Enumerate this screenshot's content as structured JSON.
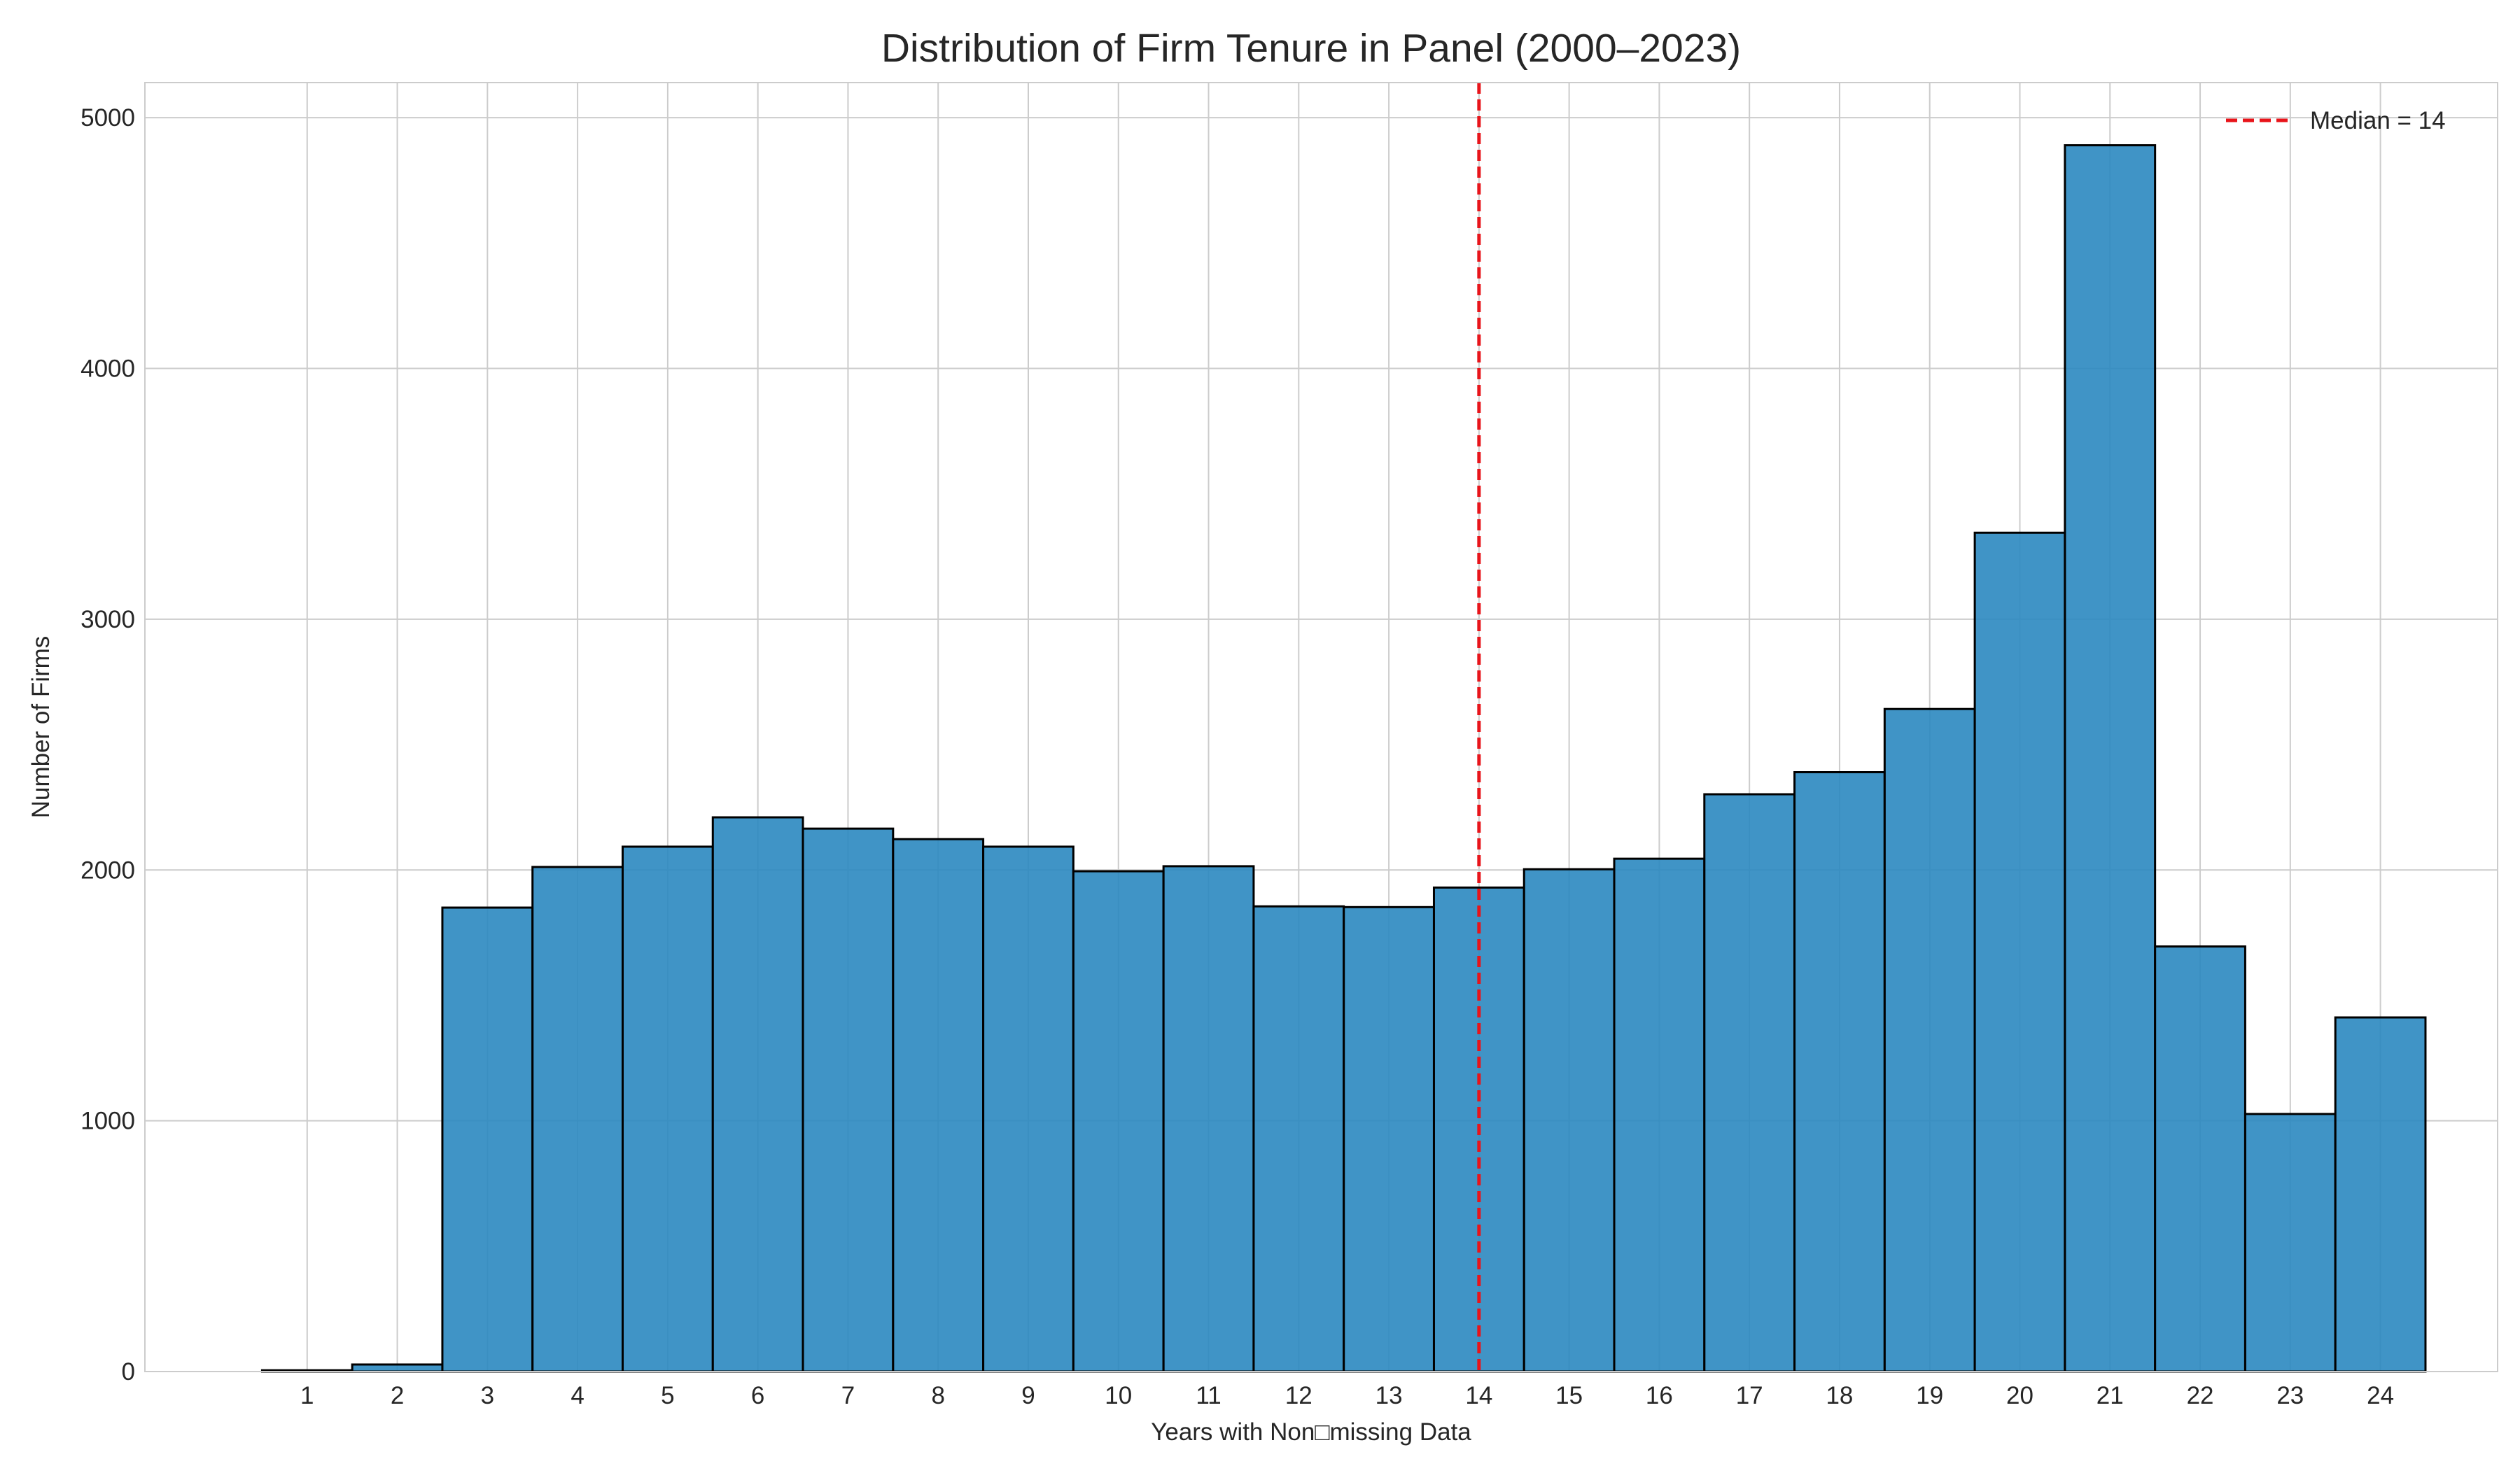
{
  "chart_data": {
    "type": "bar",
    "title": "Distribution of Firm Tenure in Panel (2000–2023)",
    "xlabel": "Years with Non□missing Data",
    "ylabel": "Number of Firms",
    "categories": [
      "1",
      "2",
      "3",
      "4",
      "5",
      "6",
      "7",
      "8",
      "9",
      "10",
      "11",
      "12",
      "13",
      "14",
      "15",
      "16",
      "17",
      "18",
      "19",
      "20",
      "21",
      "22",
      "23",
      "24"
    ],
    "x": [
      1,
      2,
      3,
      4,
      5,
      6,
      7,
      8,
      9,
      10,
      11,
      12,
      13,
      14,
      15,
      16,
      17,
      18,
      19,
      20,
      21,
      22,
      23,
      24
    ],
    "values": [
      5,
      28,
      1850,
      2012,
      2093,
      2210,
      2165,
      2123,
      2093,
      1995,
      2015,
      1855,
      1852,
      1930,
      2003,
      2045,
      2302,
      2390,
      2642,
      3345,
      4890,
      1695,
      1027,
      1412
    ],
    "xlim": [
      -0.8,
      25.3
    ],
    "ylim": [
      0,
      5140
    ],
    "yticks": [
      0,
      1000,
      2000,
      3000,
      4000,
      5000
    ],
    "ytick_labels": [
      "0",
      "1000",
      "2000",
      "3000",
      "4000",
      "5000"
    ],
    "median": 14,
    "grid": true,
    "legend": {
      "position": "top-right",
      "entries": [
        "Median = 14"
      ]
    },
    "colors": {
      "bar_fill": "#2b88c0",
      "bar_edge": "#000000",
      "median_line": "#e8141a",
      "grid": "#cccccc",
      "axes_edge": "#cccccc",
      "text": "#262626"
    }
  }
}
